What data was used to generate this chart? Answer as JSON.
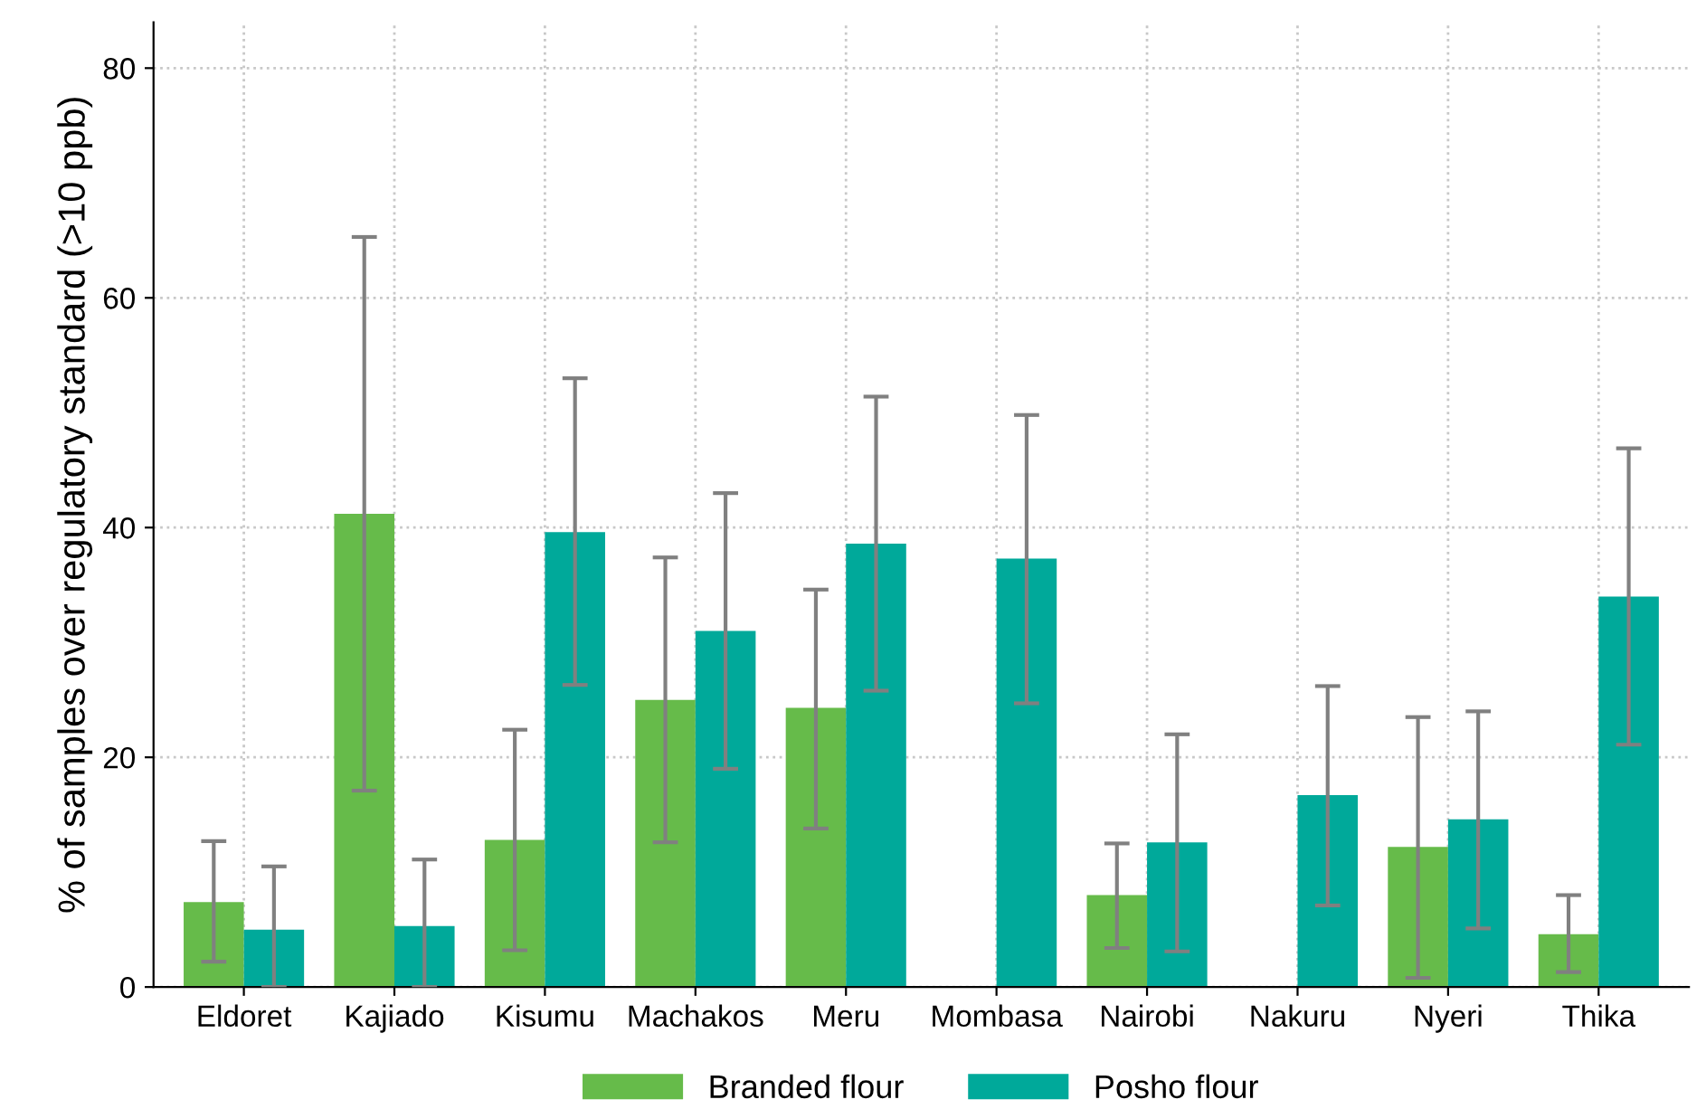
{
  "chart_data": {
    "type": "bar",
    "ylabel": "% of samples over regulatory standard (>10 ppb)",
    "categories": [
      "Eldoret",
      "Kajiado",
      "Kisumu",
      "Machakos",
      "Meru",
      "Mombasa",
      "Nairobi",
      "Nakuru",
      "Nyeri",
      "Thika"
    ],
    "series": [
      {
        "name": "Branded flour",
        "color": "#66bb4a",
        "values": [
          7.4,
          41.2,
          12.8,
          25.0,
          24.3,
          null,
          8.0,
          null,
          12.2,
          4.6
        ],
        "errors": [
          [
            2.2,
            12.7
          ],
          [
            17.1,
            65.3
          ],
          [
            3.2,
            22.4
          ],
          [
            12.6,
            37.4
          ],
          [
            13.8,
            34.6
          ],
          null,
          [
            3.4,
            12.5
          ],
          null,
          [
            0.8,
            23.5
          ],
          [
            1.3,
            8.0
          ]
        ]
      },
      {
        "name": "Posho flour",
        "color": "#00a99a",
        "values": [
          5.0,
          5.3,
          39.6,
          31.0,
          38.6,
          37.3,
          12.6,
          16.7,
          14.6,
          34.0
        ],
        "errors": [
          [
            0,
            10.5
          ],
          [
            0,
            11.1
          ],
          [
            26.3,
            53.0
          ],
          [
            19.0,
            43.0
          ],
          [
            25.8,
            51.4
          ],
          [
            24.7,
            49.8
          ],
          [
            3.1,
            22.0
          ],
          [
            7.1,
            26.2
          ],
          [
            5.1,
            24.0
          ],
          [
            21.1,
            46.9
          ]
        ]
      }
    ],
    "ylim": [
      0,
      84
    ],
    "yticks": [
      0,
      20,
      40,
      60,
      80
    ],
    "grid": true,
    "legend": "bottom"
  }
}
